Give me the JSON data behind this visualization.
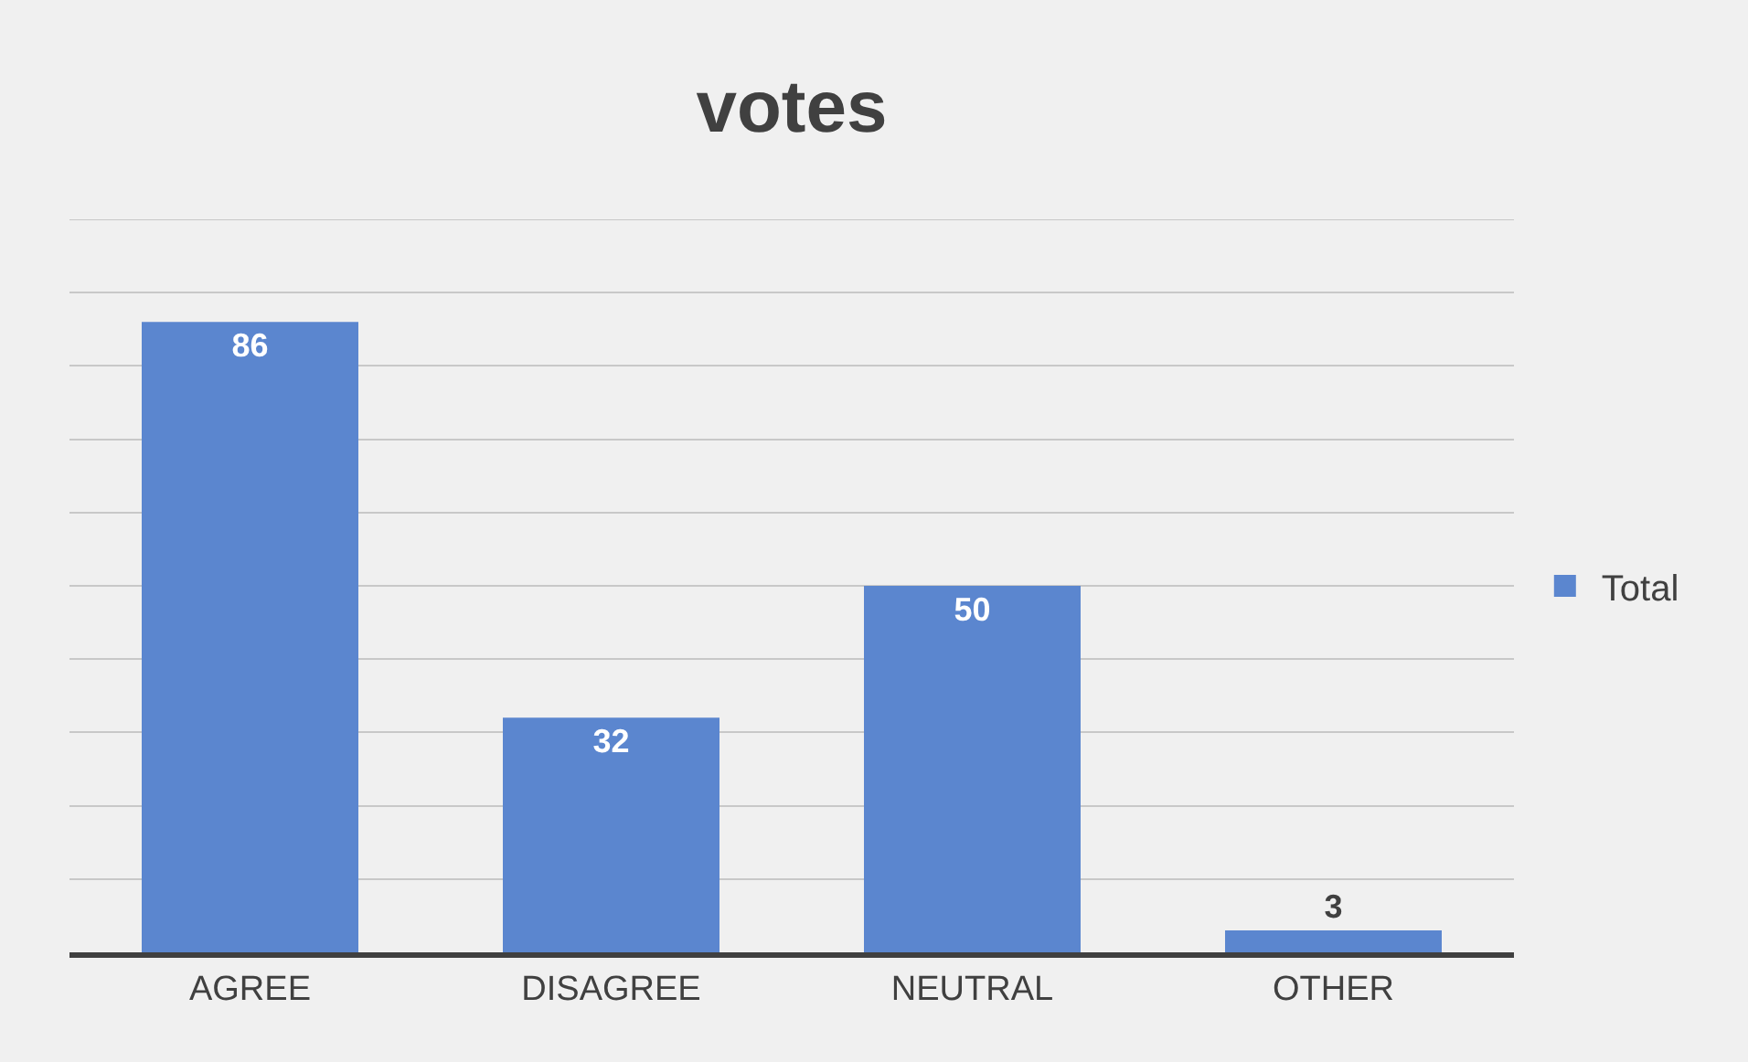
{
  "chart_data": {
    "type": "bar",
    "title": "votes",
    "categories": [
      "AGREE",
      "DISAGREE",
      "NEUTRAL",
      "OTHER"
    ],
    "series": [
      {
        "name": "Total",
        "color": "#5b86cf",
        "values": [
          86,
          32,
          50,
          3
        ]
      }
    ],
    "ylim": [
      0,
      100
    ],
    "yticks": [
      {
        "value": 0,
        "label": null
      },
      {
        "value": 10,
        "label": null
      },
      {
        "value": 20,
        "label": null
      },
      {
        "value": 30,
        "label": null
      },
      {
        "value": 40,
        "label": null
      },
      {
        "value": 50,
        "label": null
      },
      {
        "value": 60,
        "label": null
      },
      {
        "value": 70,
        "label": null
      },
      {
        "value": 80,
        "label": null
      },
      {
        "value": 90,
        "label": null
      },
      {
        "value": 100,
        "label": null
      }
    ],
    "tick_labels": "x",
    "grid": "y",
    "legend": "right",
    "data_labels": true
  }
}
